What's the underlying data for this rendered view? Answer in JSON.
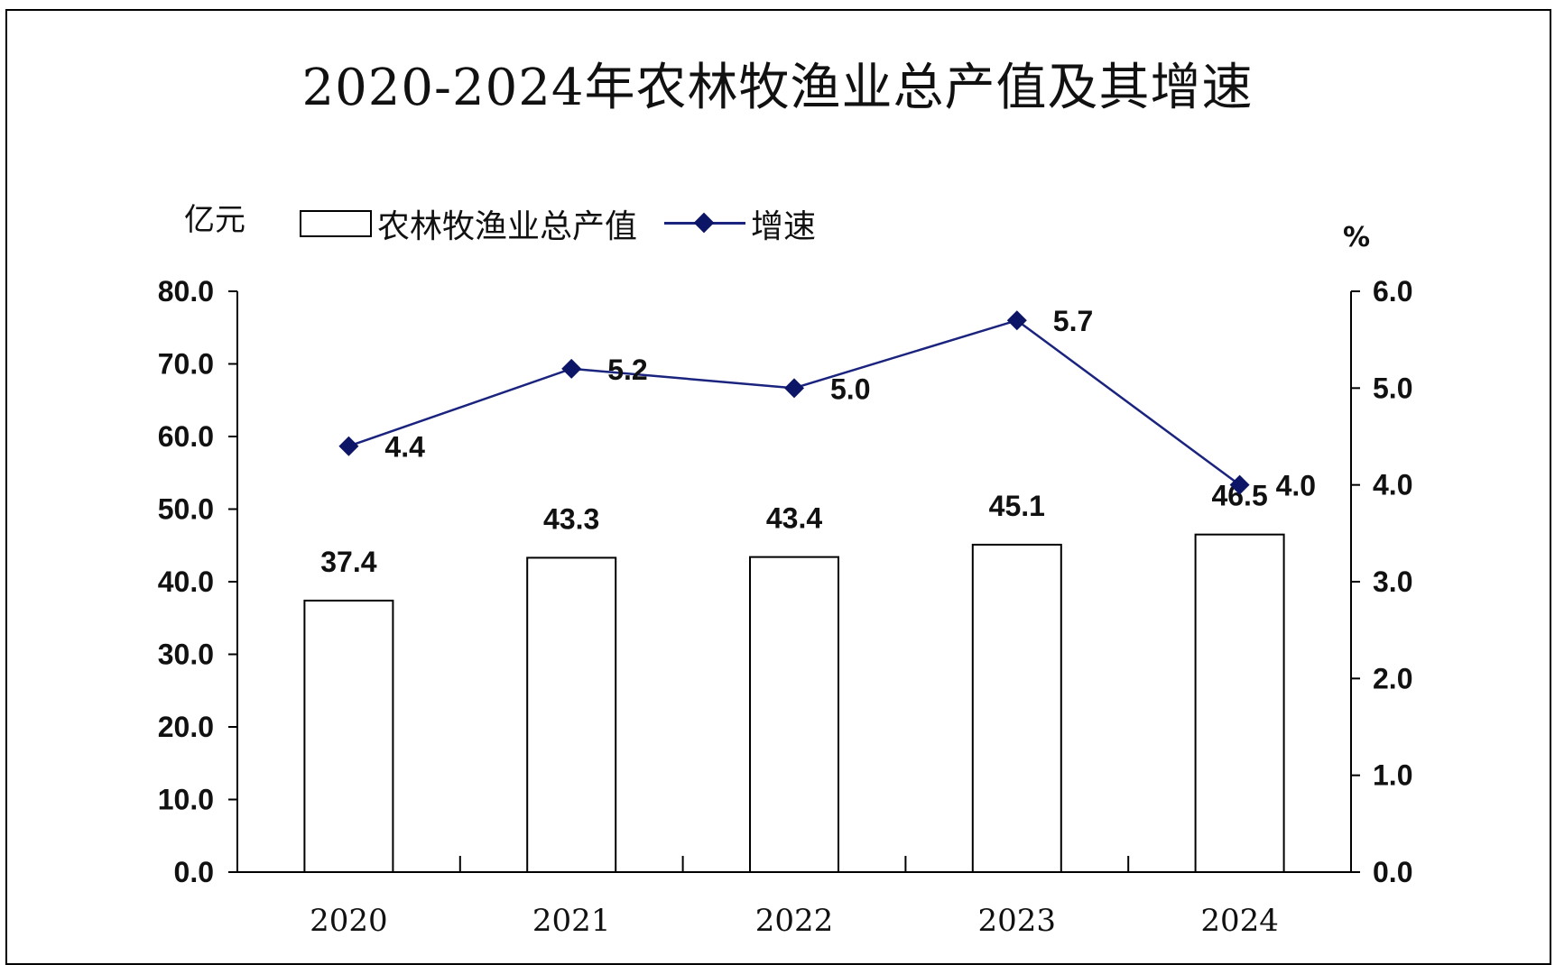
{
  "chart_data": {
    "type": "bar",
    "title": "2020-2024年农林牧渔业总产值及其增速",
    "categories": [
      "2020",
      "2021",
      "2022",
      "2023",
      "2024"
    ],
    "series": [
      {
        "name": "农林牧渔业总产值",
        "type": "bar",
        "axis": "left",
        "values": [
          37.4,
          43.3,
          43.4,
          45.1,
          46.5
        ],
        "labels": [
          "37.4",
          "43.3",
          "43.4",
          "45.1",
          "46.5"
        ]
      },
      {
        "name": "增速",
        "type": "line",
        "axis": "right",
        "values": [
          4.4,
          5.2,
          5.0,
          5.7,
          4.0
        ],
        "labels": [
          "4.4",
          "5.2",
          "5.0",
          "5.7",
          "4.0"
        ]
      }
    ],
    "y_left": {
      "unit": "亿元",
      "range": [
        0,
        80
      ],
      "ticks": [
        "0.0",
        "10.0",
        "20.0",
        "30.0",
        "40.0",
        "50.0",
        "60.0",
        "70.0",
        "80.0"
      ]
    },
    "y_right": {
      "unit": "%",
      "range": [
        0,
        6
      ],
      "ticks": [
        "0.0",
        "1.0",
        "2.0",
        "3.0",
        "4.0",
        "5.0",
        "6.0"
      ]
    },
    "grid": false,
    "legend_position": "top-left",
    "colors": {
      "bar_fill": "#ffffff",
      "bar_stroke": "#000000",
      "line": "#1a237e",
      "marker": "#0d1566"
    }
  }
}
